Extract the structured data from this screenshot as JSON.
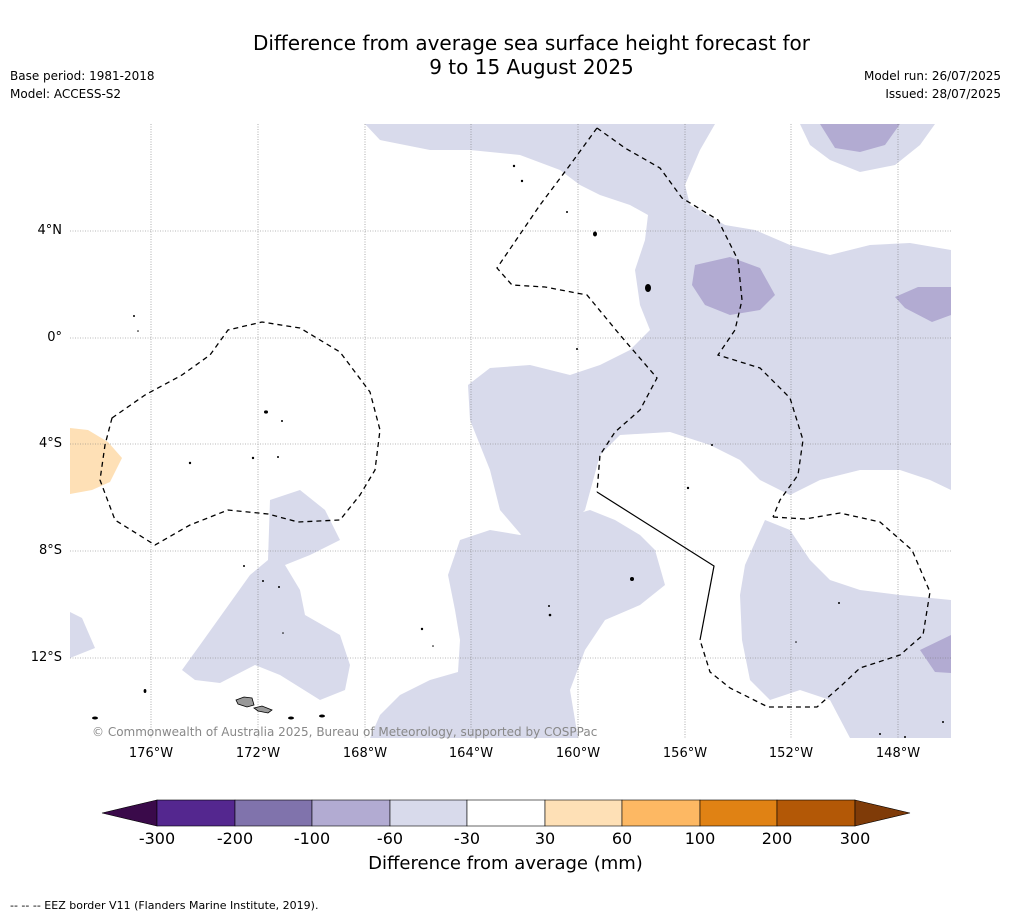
{
  "title_line1": "Difference from average sea surface height forecast for",
  "title_line2": "9 to 15 August 2025",
  "meta": {
    "base_period": "Base period: 1981-2018",
    "model": "Model: ACCESS-S2",
    "model_run": "Model run: 26/07/2025",
    "issued": "Issued: 28/07/2025"
  },
  "map": {
    "lat_labels": [
      "4°N",
      "0°",
      "4°S",
      "8°S",
      "12°S"
    ],
    "lon_labels": [
      "176°W",
      "172°W",
      "168°W",
      "164°W",
      "160°W",
      "156°W",
      "152°W",
      "148°W"
    ],
    "copyright": "© Commonwealth of Australia 2025, Bureau of Meteorology, supported by COSPPac"
  },
  "colorbar": {
    "title": "Difference from average (mm)",
    "tick_labels": [
      "-300",
      "-200",
      "-100",
      "-60",
      "-30",
      "30",
      "60",
      "100",
      "200",
      "300"
    ],
    "colors": [
      "#3a0a4a",
      "#54278f",
      "#8073ac",
      "#b2abd2",
      "#d8daeb",
      "#ffffff",
      "#fee0b6",
      "#fdb863",
      "#e08214",
      "#b35806",
      "#7f3b08"
    ]
  },
  "footer": "--  --  -- EEZ border V11 (Flanders Marine Institute, 2019)."
}
